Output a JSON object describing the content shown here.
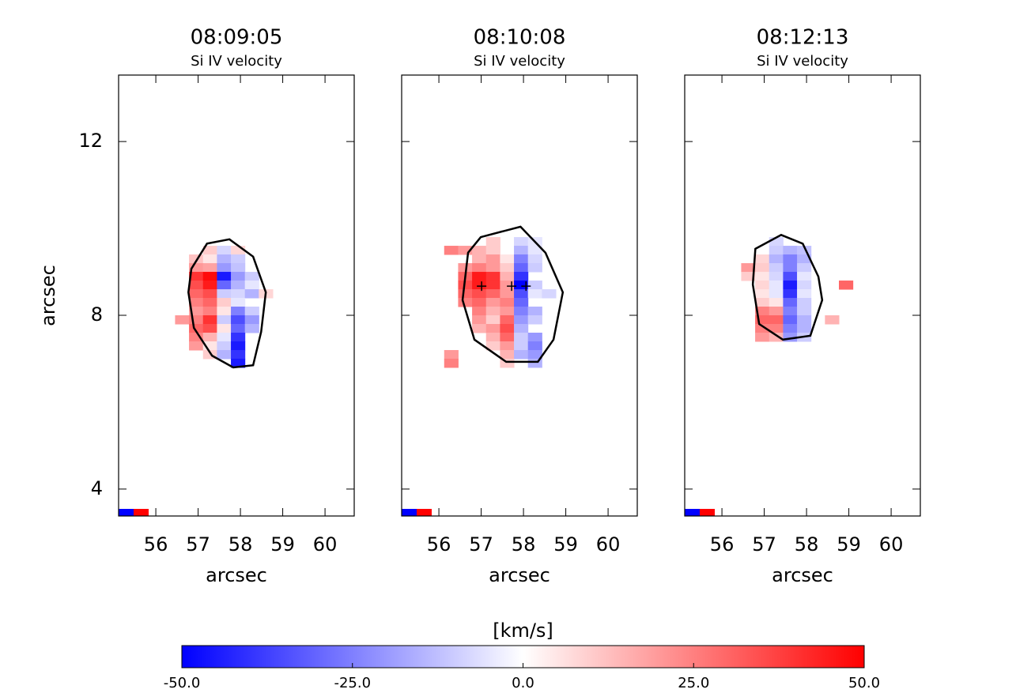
{
  "chart_data": [
    {
      "type": "heatmap",
      "title": "08:09:05",
      "subtitle": "Si IV velocity",
      "xlabel": "arcsec",
      "ylabel": "arcsec",
      "xlim": [
        55.12,
        60.69
      ],
      "ylim": [
        3.38,
        13.53
      ],
      "xticks": [
        56,
        57,
        58,
        59,
        60
      ],
      "yticks": [
        4,
        8,
        12
      ],
      "cell_size": [
        0.33,
        0.2
      ],
      "cells": [
        [
          57.28,
          9.5,
          10
        ],
        [
          57.61,
          9.5,
          -8
        ],
        [
          57.94,
          9.5,
          8
        ],
        [
          56.95,
          9.3,
          12
        ],
        [
          57.28,
          9.3,
          5
        ],
        [
          57.61,
          9.3,
          -15
        ],
        [
          57.94,
          9.3,
          -10
        ],
        [
          56.95,
          9.1,
          20
        ],
        [
          57.28,
          9.1,
          18
        ],
        [
          57.61,
          9.1,
          -20
        ],
        [
          57.94,
          9.1,
          -12
        ],
        [
          56.95,
          8.9,
          40
        ],
        [
          57.28,
          8.9,
          48
        ],
        [
          57.61,
          8.9,
          -45
        ],
        [
          57.94,
          8.9,
          -20
        ],
        [
          58.27,
          8.9,
          -10
        ],
        [
          56.95,
          8.7,
          35
        ],
        [
          57.28,
          8.7,
          45
        ],
        [
          57.61,
          8.7,
          -30
        ],
        [
          57.94,
          8.7,
          -15
        ],
        [
          58.27,
          8.7,
          -5
        ],
        [
          56.95,
          8.5,
          30
        ],
        [
          57.28,
          8.5,
          35
        ],
        [
          57.61,
          8.5,
          -10
        ],
        [
          57.94,
          8.5,
          -8
        ],
        [
          58.27,
          8.5,
          -15
        ],
        [
          58.6,
          8.5,
          8
        ],
        [
          56.95,
          8.3,
          25
        ],
        [
          57.28,
          8.3,
          30
        ],
        [
          57.61,
          8.3,
          10
        ],
        [
          57.94,
          8.3,
          -5
        ],
        [
          56.95,
          8.1,
          20
        ],
        [
          57.28,
          8.1,
          25
        ],
        [
          57.61,
          8.1,
          5
        ],
        [
          57.94,
          8.1,
          -25
        ],
        [
          58.27,
          8.1,
          -10
        ],
        [
          56.62,
          7.9,
          20
        ],
        [
          56.95,
          7.9,
          25
        ],
        [
          57.28,
          7.9,
          40
        ],
        [
          57.61,
          7.9,
          -10
        ],
        [
          57.94,
          7.9,
          -35
        ],
        [
          58.27,
          7.9,
          -20
        ],
        [
          56.95,
          7.7,
          30
        ],
        [
          57.28,
          7.7,
          35
        ],
        [
          57.61,
          7.7,
          5
        ],
        [
          57.94,
          7.7,
          -30
        ],
        [
          58.27,
          7.7,
          -15
        ],
        [
          56.95,
          7.5,
          25
        ],
        [
          57.28,
          7.5,
          15
        ],
        [
          57.61,
          7.5,
          -5
        ],
        [
          57.94,
          7.5,
          -40
        ],
        [
          56.95,
          7.3,
          20
        ],
        [
          57.28,
          7.3,
          5
        ],
        [
          57.61,
          7.3,
          -10
        ],
        [
          57.94,
          7.3,
          -45
        ],
        [
          57.28,
          7.1,
          10
        ],
        [
          57.61,
          7.1,
          -15
        ],
        [
          57.94,
          7.1,
          -40
        ],
        [
          57.94,
          6.9,
          -45
        ]
      ],
      "contour": {
        "x": [
          56.84,
          57.21,
          57.74,
          58.3,
          58.6,
          58.49,
          58.3,
          57.83,
          57.33,
          56.9,
          56.77
        ],
        "y": [
          9.07,
          9.65,
          9.75,
          9.35,
          8.53,
          7.62,
          6.85,
          6.8,
          7.07,
          7.71,
          8.53
        ]
      }
    },
    {
      "type": "heatmap",
      "title": "08:10:08",
      "subtitle": "Si IV velocity",
      "xlabel": "arcsec",
      "xlim": [
        55.12,
        60.69
      ],
      "ylim": [
        3.38,
        13.53
      ],
      "xticks": [
        56,
        57,
        58,
        59,
        60
      ],
      "cell_size": [
        0.33,
        0.2
      ],
      "cells": [
        [
          57.28,
          9.7,
          10
        ],
        [
          57.94,
          9.7,
          -8
        ],
        [
          58.27,
          9.7,
          -5
        ],
        [
          56.29,
          9.5,
          25
        ],
        [
          56.62,
          9.5,
          20
        ],
        [
          56.95,
          9.5,
          15
        ],
        [
          57.28,
          9.5,
          10
        ],
        [
          57.94,
          9.5,
          -15
        ],
        [
          58.27,
          9.5,
          -5
        ],
        [
          56.95,
          9.3,
          15
        ],
        [
          57.28,
          9.3,
          20
        ],
        [
          57.61,
          9.3,
          5
        ],
        [
          57.94,
          9.3,
          -25
        ],
        [
          58.27,
          9.3,
          -8
        ],
        [
          56.62,
          9.1,
          20
        ],
        [
          56.95,
          9.1,
          25
        ],
        [
          57.28,
          9.1,
          20
        ],
        [
          57.61,
          9.1,
          10
        ],
        [
          57.94,
          9.1,
          -30
        ],
        [
          58.27,
          9.1,
          -10
        ],
        [
          56.62,
          8.9,
          30
        ],
        [
          56.95,
          8.9,
          45
        ],
        [
          57.28,
          8.9,
          40
        ],
        [
          57.61,
          8.9,
          15
        ],
        [
          57.94,
          8.9,
          -40
        ],
        [
          56.62,
          8.7,
          35
        ],
        [
          56.95,
          8.7,
          45
        ],
        [
          57.28,
          8.7,
          40
        ],
        [
          57.61,
          8.7,
          20
        ],
        [
          57.94,
          8.7,
          -50
        ],
        [
          58.27,
          8.7,
          -10
        ],
        [
          56.62,
          8.5,
          30
        ],
        [
          56.95,
          8.5,
          35
        ],
        [
          57.28,
          8.5,
          30
        ],
        [
          57.61,
          8.5,
          20
        ],
        [
          57.94,
          8.5,
          -35
        ],
        [
          58.27,
          8.5,
          -5
        ],
        [
          58.6,
          8.5,
          -8
        ],
        [
          56.62,
          8.3,
          25
        ],
        [
          56.95,
          8.3,
          30
        ],
        [
          57.28,
          8.3,
          20
        ],
        [
          57.61,
          8.3,
          25
        ],
        [
          57.94,
          8.3,
          -30
        ],
        [
          56.95,
          8.1,
          25
        ],
        [
          57.28,
          8.1,
          15
        ],
        [
          57.61,
          8.1,
          20
        ],
        [
          57.94,
          8.1,
          -25
        ],
        [
          58.27,
          8.1,
          -15
        ],
        [
          56.95,
          7.9,
          20
        ],
        [
          57.28,
          7.9,
          10
        ],
        [
          57.61,
          7.9,
          30
        ],
        [
          57.94,
          7.9,
          -20
        ],
        [
          58.27,
          7.9,
          -10
        ],
        [
          56.95,
          7.7,
          15
        ],
        [
          57.28,
          7.7,
          20
        ],
        [
          57.61,
          7.7,
          35
        ],
        [
          57.94,
          7.7,
          -15
        ],
        [
          57.28,
          7.5,
          15
        ],
        [
          57.61,
          7.5,
          30
        ],
        [
          57.94,
          7.5,
          -10
        ],
        [
          58.27,
          7.5,
          -20
        ],
        [
          57.28,
          7.3,
          10
        ],
        [
          57.61,
          7.3,
          20
        ],
        [
          57.94,
          7.3,
          -10
        ],
        [
          58.27,
          7.3,
          -25
        ],
        [
          56.29,
          7.1,
          20
        ],
        [
          57.61,
          7.1,
          15
        ],
        [
          57.94,
          7.1,
          -15
        ],
        [
          58.27,
          7.1,
          -20
        ],
        [
          56.29,
          6.9,
          25
        ],
        [
          57.61,
          6.9,
          10
        ],
        [
          58.27,
          6.9,
          -15
        ]
      ],
      "contour": {
        "x": [
          56.69,
          56.99,
          57.93,
          58.52,
          58.93,
          58.71,
          58.34,
          57.59,
          56.84,
          56.56
        ],
        "y": [
          9.44,
          9.8,
          10.04,
          9.44,
          8.53,
          7.44,
          6.93,
          6.93,
          7.44,
          8.35
        ]
      },
      "markers": {
        "x": [
          57.01,
          57.72,
          58.06
        ],
        "y": [
          8.67,
          8.67,
          8.67
        ]
      }
    },
    {
      "type": "heatmap",
      "title": "08:12:13",
      "subtitle": "Si IV velocity",
      "xlabel": "arcsec",
      "xlim": [
        55.12,
        60.69
      ],
      "ylim": [
        3.38,
        13.53
      ],
      "xticks": [
        56,
        57,
        58,
        59,
        60
      ],
      "cell_size": [
        0.33,
        0.2
      ],
      "cells": [
        [
          57.28,
          9.7,
          -8
        ],
        [
          57.28,
          9.5,
          -10
        ],
        [
          57.61,
          9.5,
          -15
        ],
        [
          57.94,
          9.5,
          -12
        ],
        [
          56.95,
          9.3,
          8
        ],
        [
          57.28,
          9.3,
          -15
        ],
        [
          57.61,
          9.3,
          -25
        ],
        [
          57.94,
          9.3,
          -15
        ],
        [
          56.62,
          9.1,
          20
        ],
        [
          56.95,
          9.1,
          10
        ],
        [
          57.28,
          9.1,
          -10
        ],
        [
          57.61,
          9.1,
          -25
        ],
        [
          57.94,
          9.1,
          -10
        ],
        [
          56.62,
          8.9,
          10
        ],
        [
          56.95,
          8.9,
          5
        ],
        [
          57.28,
          8.9,
          -8
        ],
        [
          57.61,
          8.9,
          -35
        ],
        [
          57.94,
          8.9,
          -5
        ],
        [
          56.95,
          8.7,
          8
        ],
        [
          57.28,
          8.7,
          -5
        ],
        [
          57.61,
          8.7,
          -45
        ],
        [
          57.94,
          8.7,
          -8
        ],
        [
          58.93,
          8.7,
          30
        ],
        [
          56.95,
          8.5,
          5
        ],
        [
          57.28,
          8.5,
          -5
        ],
        [
          57.61,
          8.5,
          -40
        ],
        [
          57.94,
          8.5,
          -5
        ],
        [
          56.95,
          8.3,
          10
        ],
        [
          57.28,
          8.3,
          5
        ],
        [
          57.61,
          8.3,
          -30
        ],
        [
          57.94,
          8.3,
          -10
        ],
        [
          56.95,
          8.1,
          25
        ],
        [
          57.28,
          8.1,
          20
        ],
        [
          57.61,
          8.1,
          -25
        ],
        [
          57.94,
          8.1,
          -10
        ],
        [
          56.95,
          7.9,
          30
        ],
        [
          57.28,
          7.9,
          30
        ],
        [
          57.61,
          7.9,
          -30
        ],
        [
          57.94,
          7.9,
          -15
        ],
        [
          58.6,
          7.9,
          15
        ],
        [
          56.95,
          7.7,
          25
        ],
        [
          57.28,
          7.7,
          25
        ],
        [
          57.61,
          7.7,
          -25
        ],
        [
          57.94,
          7.7,
          -15
        ],
        [
          56.95,
          7.5,
          20
        ],
        [
          57.28,
          7.5,
          15
        ],
        [
          57.61,
          7.5,
          -20
        ],
        [
          57.94,
          7.5,
          -10
        ]
      ],
      "contour": {
        "x": [
          56.79,
          57.4,
          57.91,
          58.28,
          58.37,
          58.09,
          57.44,
          56.88,
          56.73
        ],
        "y": [
          9.53,
          9.85,
          9.65,
          8.89,
          8.35,
          7.53,
          7.44,
          7.8,
          8.71
        ]
      }
    },
    {
      "type": "colorbar",
      "label": "[km/s]",
      "lim": [
        -50,
        50
      ],
      "colormap": [
        "#0000ff",
        "#ffffff",
        "#ff0000"
      ],
      "ticks": [
        {
          "value": -50,
          "label": "-50.0"
        },
        {
          "value": -25,
          "label": "-25.0"
        },
        {
          "value": 0,
          "label": "0.0"
        },
        {
          "value": 25,
          "label": "25.0"
        },
        {
          "value": 50,
          "label": "50.0"
        }
      ]
    }
  ]
}
